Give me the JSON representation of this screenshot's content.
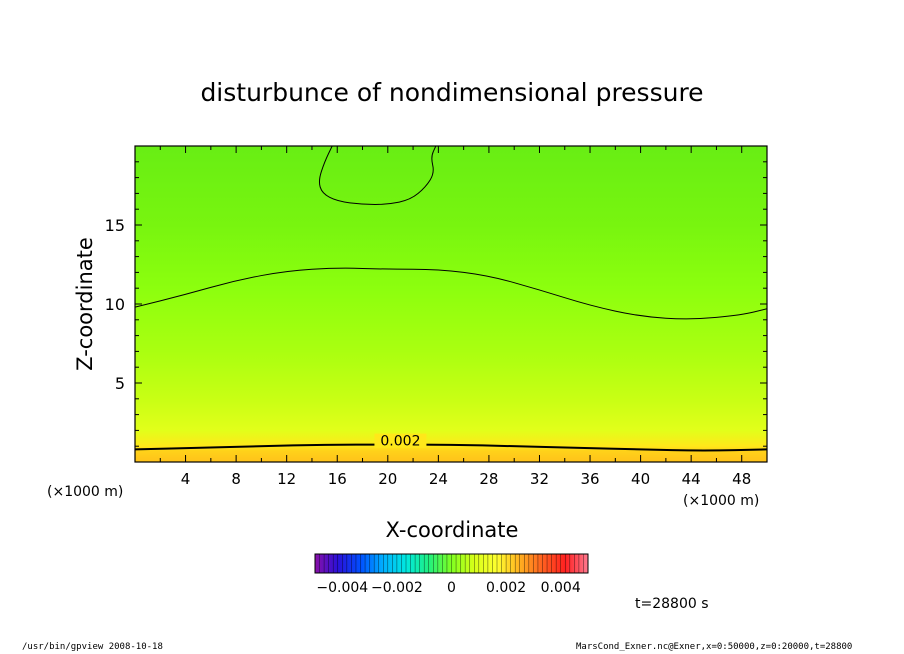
{
  "chart_data": {
    "type": "heatmap",
    "title": "disturbunce of nondimensional pressure",
    "xlabel": "X-coordinate",
    "ylabel": "Z-coordinate",
    "x_unit": "(×1000 m)",
    "z_unit": "(×1000 m)",
    "xlim": [
      0,
      50
    ],
    "zlim": [
      0,
      20
    ],
    "xticks": [
      "4",
      "8",
      "12",
      "16",
      "20",
      "24",
      "28",
      "32",
      "36",
      "40",
      "44",
      "48"
    ],
    "zticks": [
      "5",
      "10",
      "15"
    ],
    "contours": [
      {
        "label": "0.002",
        "x": [
          0,
          5,
          10,
          15,
          20,
          25,
          30,
          35,
          40,
          45,
          50
        ],
        "z": [
          0.8,
          0.9,
          1.0,
          1.1,
          1.1,
          1.1,
          1.0,
          0.9,
          0.8,
          0.7,
          0.8
        ]
      },
      {
        "label": "",
        "x": [
          0,
          4,
          8,
          12,
          16,
          20,
          24,
          28,
          32,
          36,
          40,
          44,
          48,
          50
        ],
        "z": [
          9.8,
          10.6,
          11.5,
          12.1,
          12.3,
          12.2,
          12.2,
          11.8,
          10.9,
          9.9,
          9.2,
          9.0,
          9.3,
          9.7
        ]
      },
      {
        "label": "",
        "closed": false,
        "x": [
          15.6,
          15.0,
          14.5,
          14.8,
          16.0,
          18.0,
          20.0,
          21.8,
          23.0,
          23.7,
          23.4,
          23.8
        ],
        "z": [
          20.0,
          19.0,
          17.8,
          17.0,
          16.5,
          16.3,
          16.3,
          16.6,
          17.4,
          18.3,
          19.3,
          20.0
        ]
      }
    ],
    "fill_profile": [
      {
        "z": 0.0,
        "color": "#ffc21a"
      },
      {
        "z": 0.7,
        "color": "#ffd21a"
      },
      {
        "z": 1.0,
        "color": "#ffe81a"
      },
      {
        "z": 2.0,
        "color": "#e2ff1a"
      },
      {
        "z": 4.0,
        "color": "#c8ff14"
      },
      {
        "z": 7.0,
        "color": "#aaff10"
      },
      {
        "z": 11.0,
        "color": "#8cff0e"
      },
      {
        "z": 15.0,
        "color": "#78f50f"
      },
      {
        "z": 20.0,
        "color": "#68ee14"
      }
    ],
    "colorbar": {
      "ticks": [
        "−0.004",
        "−0.002",
        "0",
        "0.002",
        "0.004"
      ],
      "range": [
        -0.005,
        0.005
      ],
      "colors": [
        "#8a10a8",
        "#2a10d8",
        "#0050ff",
        "#00b0ff",
        "#00e8e0",
        "#20f080",
        "#80ff20",
        "#d8ff18",
        "#ffff30",
        "#ffb020",
        "#ff6020",
        "#ff2020",
        "#ff7a90"
      ]
    },
    "time_label": "t=28800 s"
  },
  "footer": {
    "left": "/usr/bin/gpview  2008-10-18",
    "right": "MarsCond_Exner.nc@Exner,x=0:50000,z=0:20000,t=28800"
  }
}
